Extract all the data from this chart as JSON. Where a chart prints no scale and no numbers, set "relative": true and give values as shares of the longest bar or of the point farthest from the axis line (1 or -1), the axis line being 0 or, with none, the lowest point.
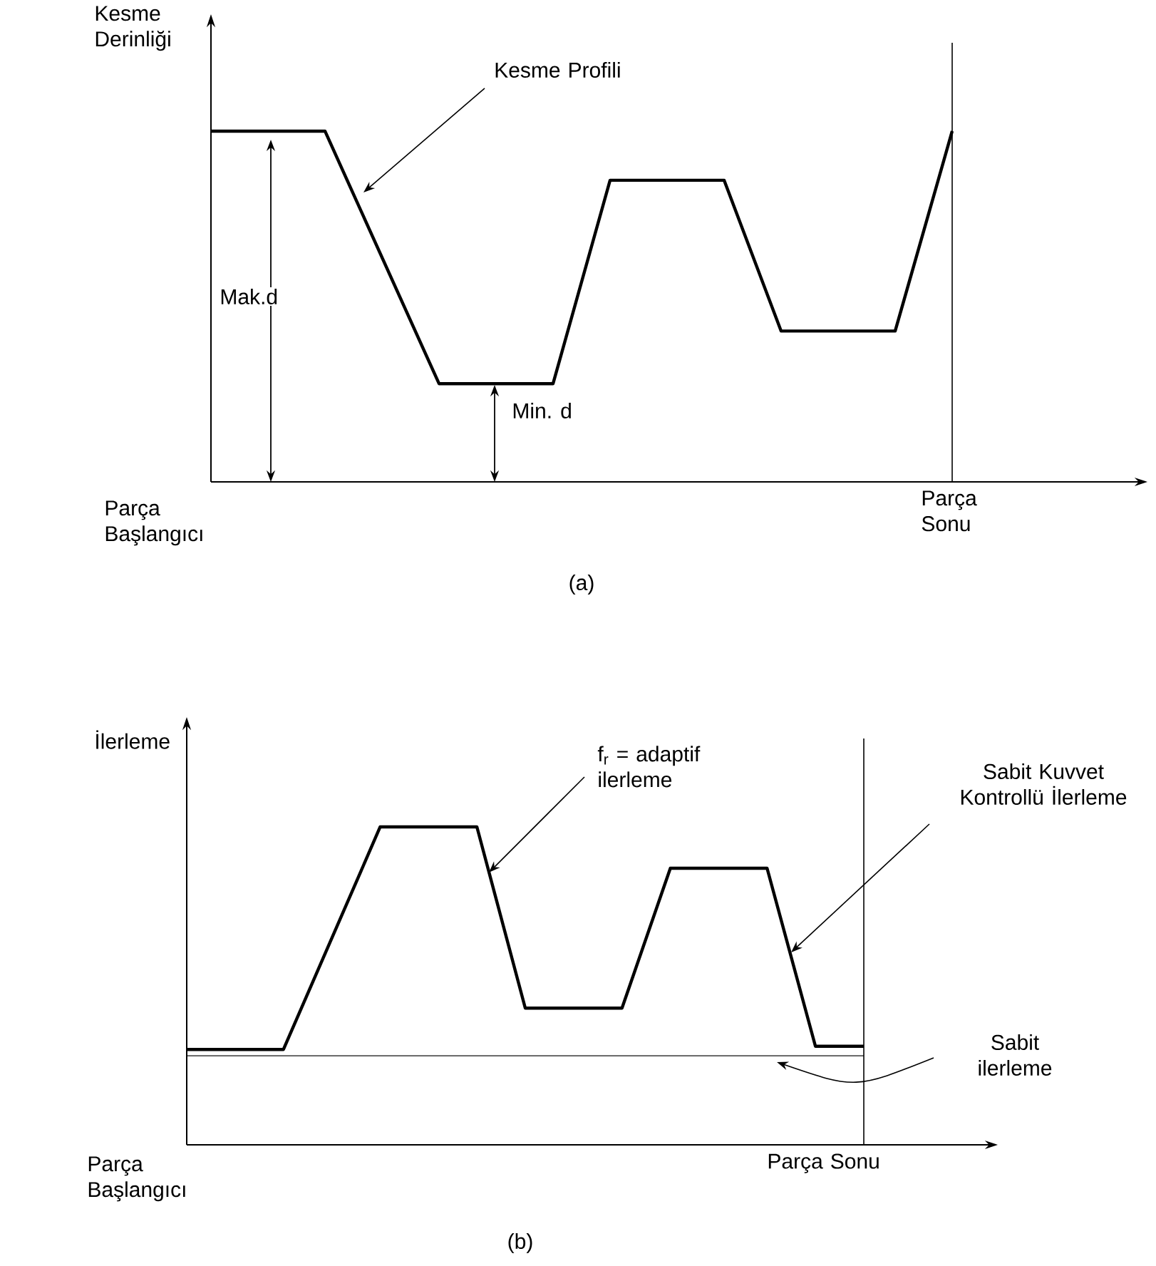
{
  "chart_data": [
    {
      "type": "line",
      "ylabel": "Kesme Derinliği",
      "relative": true,
      "categories": [
        null,
        null,
        null,
        null,
        null,
        null,
        null,
        null,
        null,
        null,
        null,
        null,
        null,
        null
      ],
      "series": [
        {
          "name": "Kesme Profili",
          "color": "#000000",
          "values": [
            1,
            1,
            1,
            0.64,
            0.28,
            0.28,
            0.28,
            0.86,
            0.86,
            0.86,
            0.43,
            0.43,
            0.43,
            1
          ]
        }
      ],
      "annotations": [
        "Mak.d",
        "Min. d",
        "Parça Başlangıcı",
        "(a)",
        "Parça Sonu"
      ]
    },
    {
      "type": "line",
      "ylabel": "İlerleme",
      "relative": true,
      "categories": [
        null,
        null,
        null,
        null,
        null,
        null,
        null,
        null,
        null,
        null,
        null,
        null,
        null,
        null,
        null
      ],
      "series": [
        {
          "color": "#000000",
          "values": [
            0.3,
            0.3,
            0.3,
            0.65,
            1,
            1,
            1,
            0.43,
            0.43,
            0.43,
            0.87,
            0.87,
            0.87,
            0.31,
            0.31
          ]
        },
        {
          "name": "Sabit ilerleme",
          "color": "#555555",
          "values": [
            0.28,
            0.28,
            0.28,
            0.28,
            0.28,
            0.28,
            0.28,
            0.28,
            0.28,
            0.28,
            0.28,
            0.28,
            0.28,
            0.28,
            0.28
          ]
        }
      ],
      "annotations": [
        "f$_{r}$ = adaptif ilerleme",
        "Sabit Kuvvet Kontrollü İlerleme",
        "Parça Başlangıcı",
        "(b)",
        "Parça Sonu"
      ]
    }
  ]
}
